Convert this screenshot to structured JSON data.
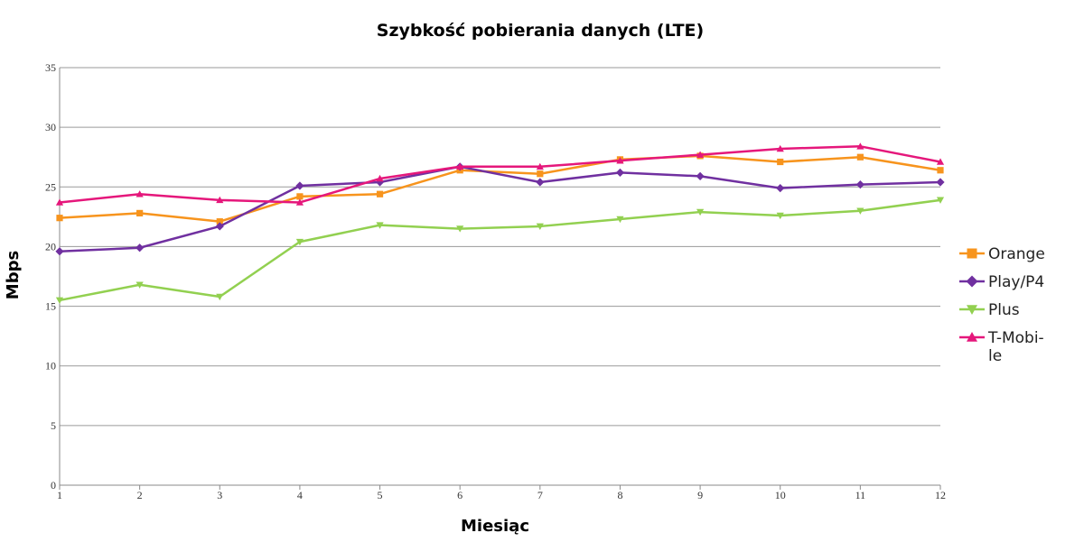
{
  "chart_data": {
    "type": "line",
    "title": "Szybkość pobierania danych  (LTE)",
    "xlabel": "Miesiąc",
    "ylabel": "Mbps",
    "x": [
      1,
      2,
      3,
      4,
      5,
      6,
      7,
      8,
      9,
      10,
      11,
      12
    ],
    "ylim": [
      0,
      35
    ],
    "yticks": [
      0,
      5,
      10,
      15,
      20,
      25,
      30,
      35
    ],
    "grid": true,
    "legend_position": "right",
    "series": [
      {
        "name": "Orange",
        "label_lines": [
          "Orange"
        ],
        "color": "#f7941d",
        "marker": "square",
        "values": [
          22.4,
          22.8,
          22.1,
          24.2,
          24.4,
          26.4,
          26.1,
          27.3,
          27.6,
          27.1,
          27.5,
          26.4
        ]
      },
      {
        "name": "Play/P4",
        "label_lines": [
          "Play/P4"
        ],
        "color": "#7030a0",
        "marker": "diamond",
        "values": [
          19.6,
          19.9,
          21.7,
          25.1,
          25.4,
          26.7,
          25.4,
          26.2,
          25.9,
          24.9,
          25.2,
          25.4
        ]
      },
      {
        "name": "Plus",
        "label_lines": [
          "Plus"
        ],
        "color": "#92d050",
        "marker": "triangle-down",
        "values": [
          15.5,
          16.8,
          15.8,
          20.4,
          21.8,
          21.5,
          21.7,
          22.3,
          22.9,
          22.6,
          23.0,
          23.9
        ]
      },
      {
        "name": "T-Mobile",
        "label_lines": [
          "T-Mobi-",
          "le"
        ],
        "color": "#e5177b",
        "marker": "triangle-up",
        "values": [
          23.7,
          24.4,
          23.9,
          23.7,
          25.7,
          26.7,
          26.7,
          27.2,
          27.7,
          28.2,
          28.4,
          27.1
        ]
      }
    ]
  }
}
